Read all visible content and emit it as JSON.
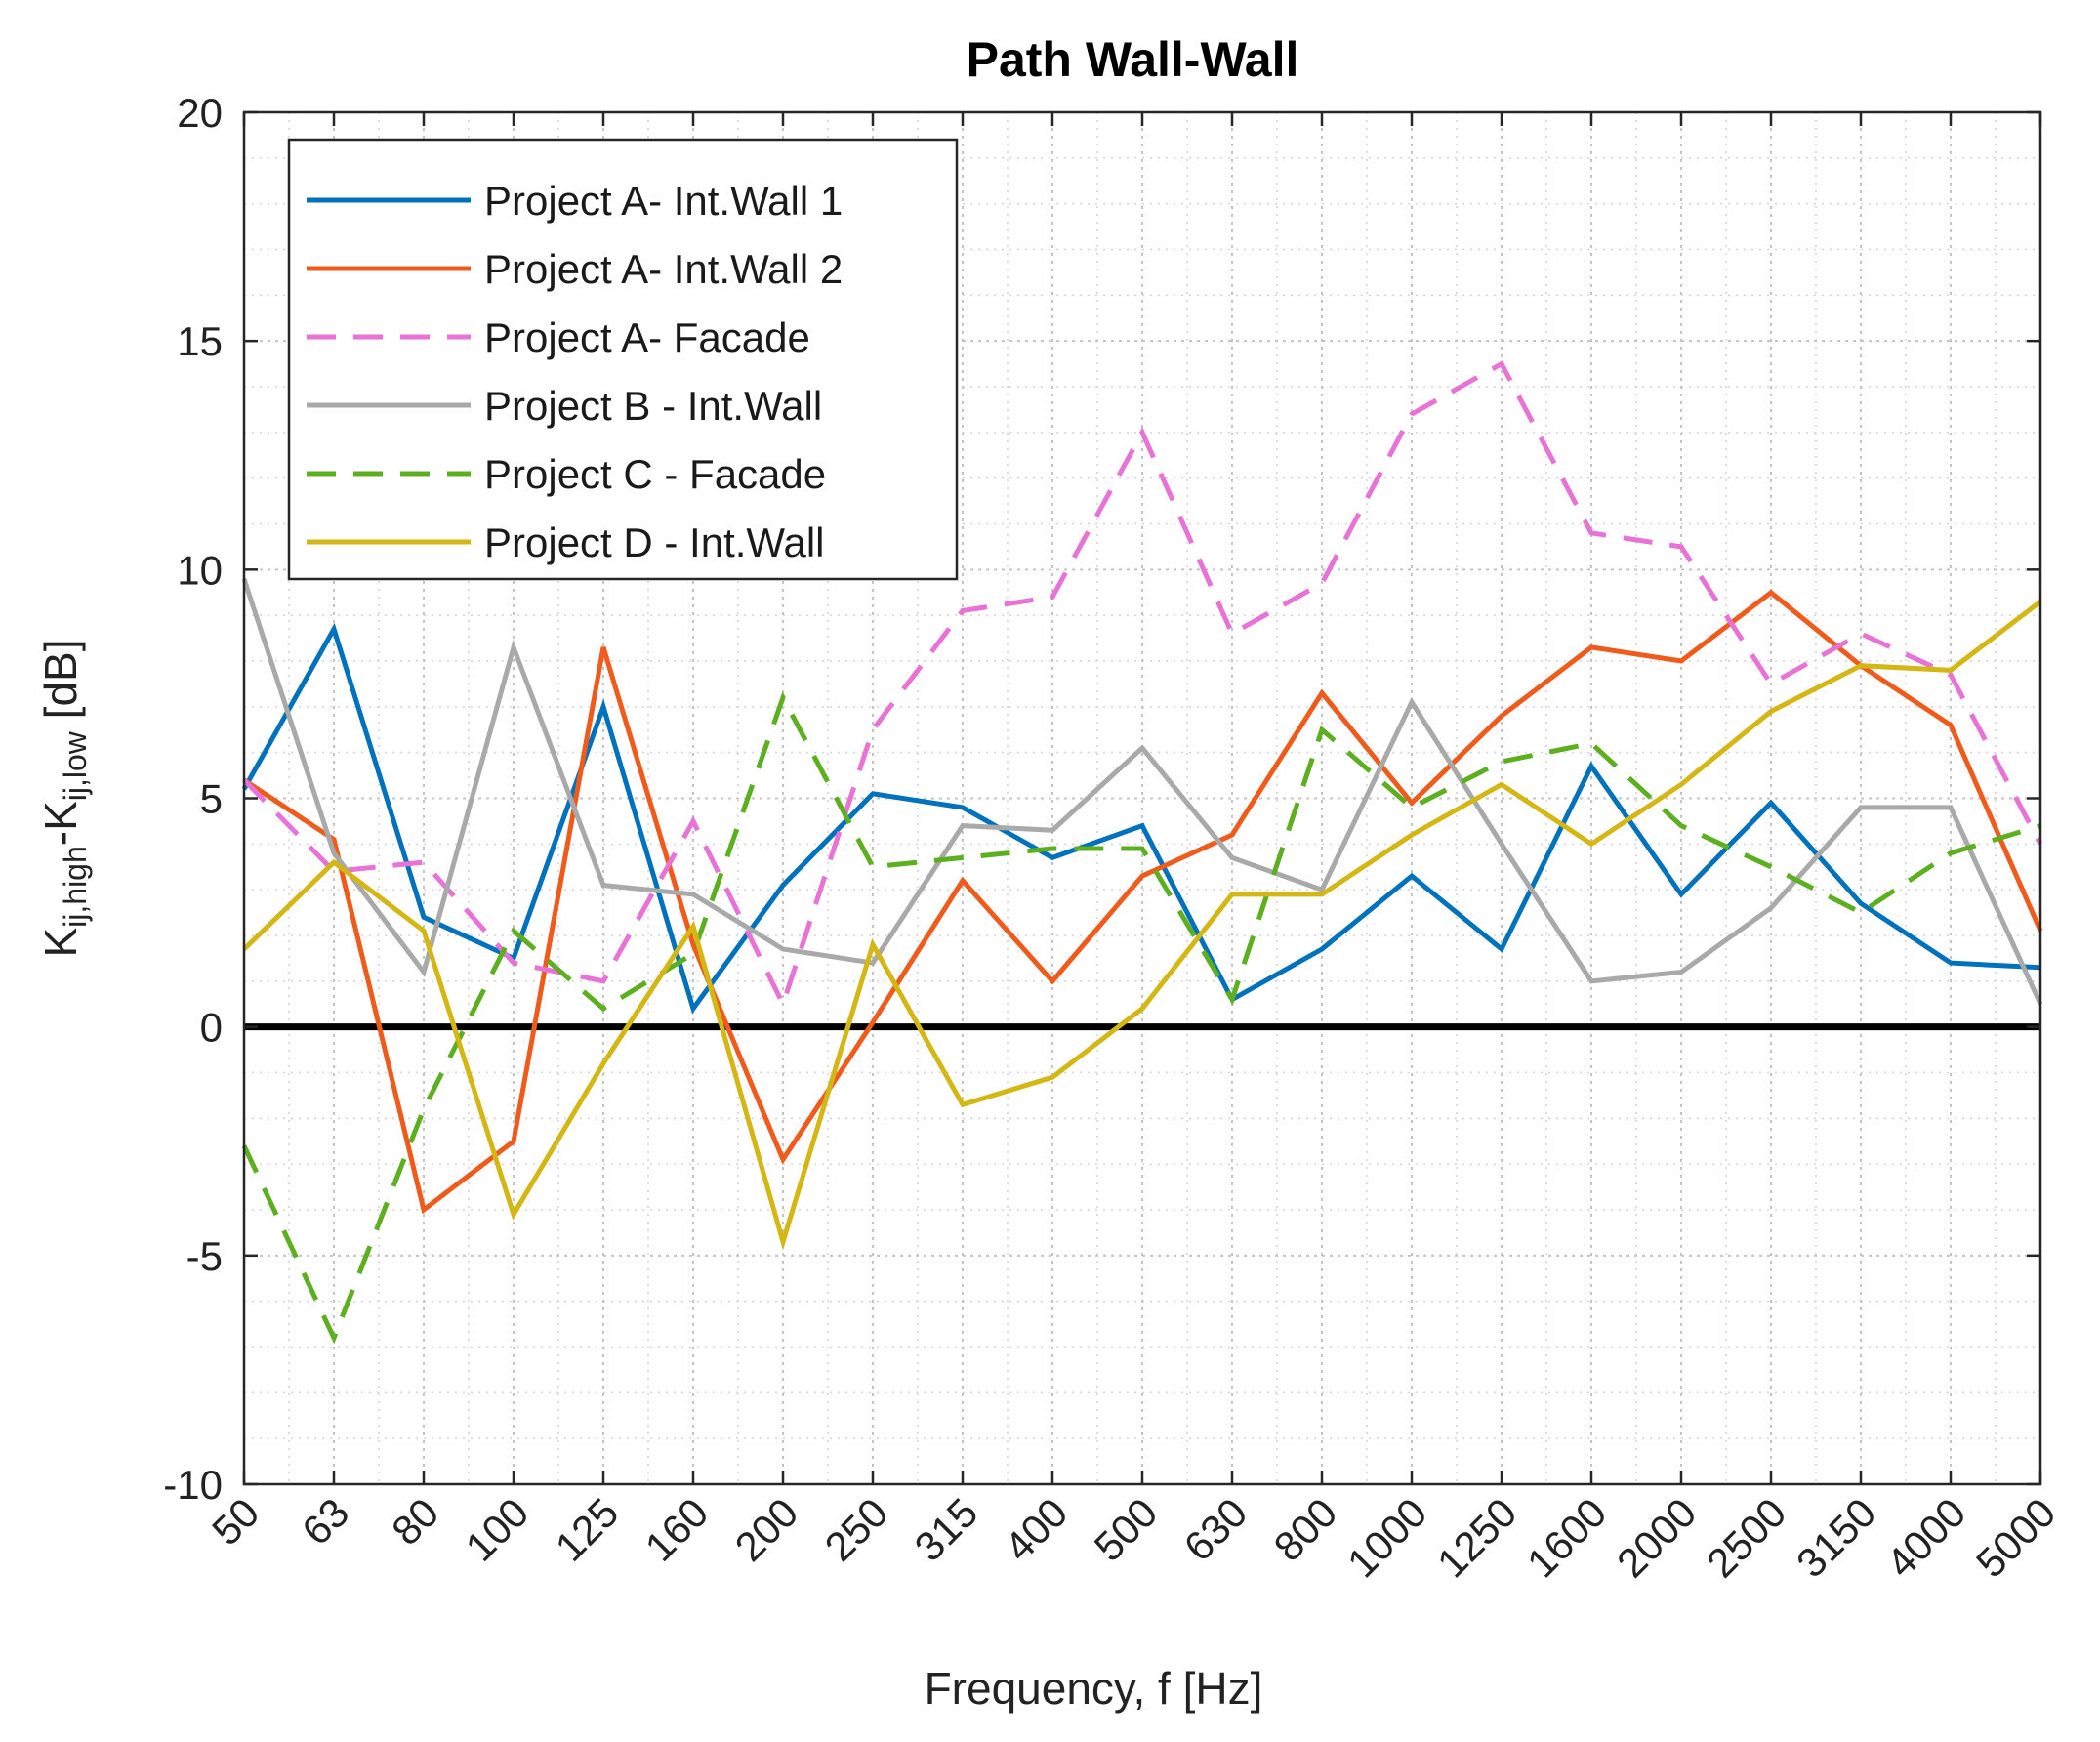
{
  "chart_data": {
    "type": "line",
    "title": "Path Wall-Wall",
    "xlabel": "Frequency, f [Hz]",
    "ylabel": {
      "parts": [
        {
          "text": "K",
          "sub": false
        },
        {
          "text": "ij,high",
          "sub": true
        },
        {
          "text": "-K",
          "sub": false
        },
        {
          "text": "ij,low",
          "sub": true
        },
        {
          "text": "  [dB]",
          "sub": false
        }
      ]
    },
    "categories": [
      "50",
      "63",
      "80",
      "100",
      "125",
      "160",
      "200",
      "250",
      "315",
      "400",
      "500",
      "630",
      "800",
      "1000",
      "1250",
      "1600",
      "2000",
      "2500",
      "3150",
      "4000",
      "5000"
    ],
    "ylim": [
      -10,
      20
    ],
    "yticks": [
      -10,
      -5,
      0,
      5,
      10,
      15,
      20
    ],
    "ytick_labels": [
      "-10",
      "-5",
      "0",
      "5",
      "10",
      "15",
      "20"
    ],
    "grid": true,
    "minor_grid": true,
    "zero_line": true,
    "legend_position": "top-left",
    "series": [
      {
        "name": "Project A- Int.Wall 1",
        "color": "#0072BD",
        "dash": "solid",
        "values": [
          5.2,
          8.7,
          2.4,
          1.5,
          7.0,
          0.4,
          3.1,
          5.1,
          4.8,
          3.7,
          4.4,
          0.6,
          1.7,
          3.3,
          1.7,
          5.7,
          2.9,
          4.9,
          2.7,
          1.4,
          1.3
        ]
      },
      {
        "name": "Project A- Int.Wall 2",
        "color": "#F05A1A",
        "dash": "solid",
        "values": [
          5.4,
          4.1,
          -4.0,
          -2.5,
          8.3,
          1.8,
          -2.9,
          0.1,
          3.2,
          1.0,
          3.3,
          4.2,
          7.3,
          4.9,
          6.8,
          8.3,
          8.0,
          9.5,
          7.9,
          6.6,
          2.1
        ]
      },
      {
        "name": "Project A- Facade",
        "color": "#E872D6",
        "dash": "dashed",
        "values": [
          5.4,
          3.4,
          3.6,
          1.4,
          1.0,
          4.5,
          0.5,
          6.5,
          9.1,
          9.4,
          13.0,
          8.6,
          9.7,
          13.4,
          14.5,
          10.8,
          10.5,
          7.5,
          8.6,
          7.7,
          4.0
        ]
      },
      {
        "name": "Project B - Int.Wall",
        "color": "#A9A9A9",
        "dash": "solid",
        "values": [
          9.8,
          3.8,
          1.2,
          8.3,
          3.1,
          2.9,
          1.7,
          1.4,
          4.4,
          4.3,
          6.1,
          3.7,
          3.0,
          7.1,
          4.0,
          1.0,
          1.2,
          2.6,
          4.8,
          4.8,
          0.5
        ]
      },
      {
        "name": "Project C - Facade",
        "color": "#5CB020",
        "dash": "dashed",
        "values": [
          -2.6,
          -6.8,
          -1.8,
          2.1,
          0.4,
          1.6,
          7.2,
          3.5,
          3.7,
          3.9,
          3.9,
          0.6,
          6.5,
          4.8,
          5.8,
          6.2,
          4.4,
          3.5,
          2.5,
          3.8,
          4.4
        ]
      },
      {
        "name": "Project D - Int.Wall",
        "color": "#D4B614",
        "dash": "solid",
        "values": [
          1.7,
          3.6,
          2.1,
          -4.1,
          -0.8,
          2.2,
          -4.7,
          1.8,
          -1.7,
          -1.1,
          0.4,
          2.9,
          2.9,
          4.2,
          5.3,
          4.0,
          5.3,
          6.9,
          7.9,
          7.8,
          9.3
        ]
      }
    ]
  }
}
